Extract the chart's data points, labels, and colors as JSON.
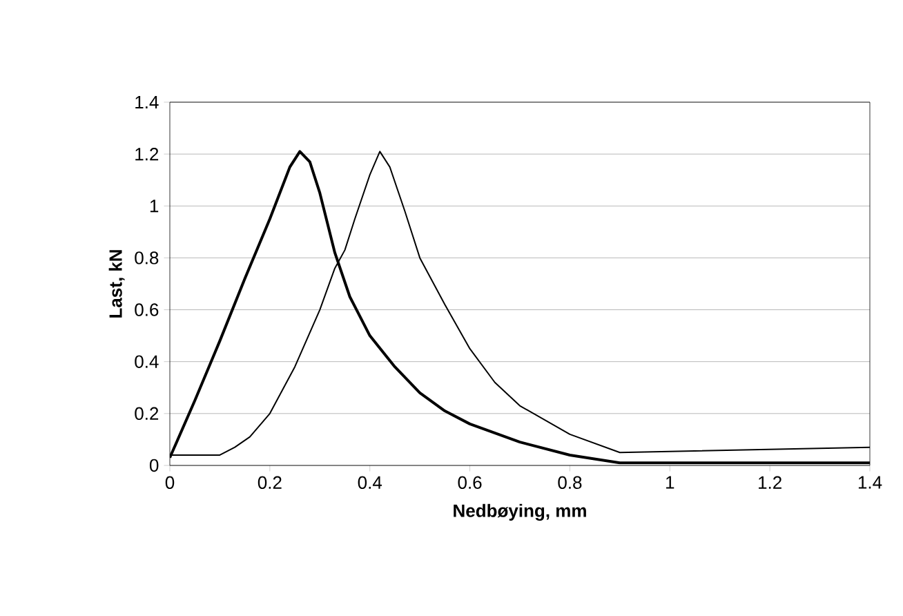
{
  "chart_data": {
    "type": "line",
    "xlabel": "Nedbøying, mm",
    "ylabel": "Last, kN",
    "xlim": [
      0,
      1.4
    ],
    "ylim": [
      0,
      1.4
    ],
    "xticks": [
      0,
      0.2,
      0.4,
      0.6,
      0.8,
      1,
      1.2,
      1.4
    ],
    "yticks": [
      0,
      0.2,
      0.4,
      0.6,
      0.8,
      1,
      1.2,
      1.4
    ],
    "grid": "y",
    "marker": "none",
    "series": [
      {
        "color": "#000000",
        "x": [
          0,
          0.05,
          0.1,
          0.15,
          0.2,
          0.24,
          0.26,
          0.28,
          0.3,
          0.33,
          0.36,
          0.4,
          0.45,
          0.5,
          0.55,
          0.6,
          0.7,
          0.8,
          0.9,
          1.4
        ],
        "values": [
          0.03,
          0.25,
          0.48,
          0.72,
          0.95,
          1.15,
          1.21,
          1.17,
          1.05,
          0.82,
          0.65,
          0.5,
          0.38,
          0.28,
          0.21,
          0.16,
          0.09,
          0.04,
          0.01,
          0.01
        ]
      },
      {
        "color": "#000000",
        "x": [
          0,
          0.1,
          0.13,
          0.16,
          0.2,
          0.25,
          0.3,
          0.33,
          0.35,
          0.37,
          0.4,
          0.42,
          0.44,
          0.47,
          0.5,
          0.55,
          0.6,
          0.65,
          0.7,
          0.8,
          0.9,
          1.4
        ],
        "values": [
          0.04,
          0.04,
          0.07,
          0.11,
          0.2,
          0.38,
          0.6,
          0.76,
          0.83,
          0.95,
          1.12,
          1.21,
          1.15,
          0.98,
          0.8,
          0.62,
          0.45,
          0.32,
          0.23,
          0.12,
          0.05,
          0.07
        ]
      }
    ]
  }
}
